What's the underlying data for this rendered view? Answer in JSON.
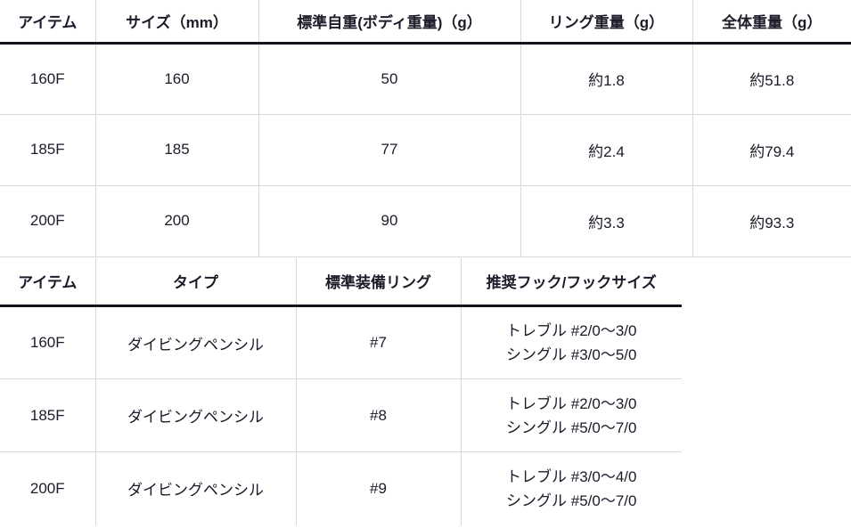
{
  "colors": {
    "background": "#ffffff",
    "text": "#1b1b29",
    "grid_line": "#d9d9d9",
    "header_rule": "#14141c"
  },
  "spec_table": {
    "headers": [
      "アイテム",
      "サイズ（mm）",
      "標準自重(ボディ重量)（g）",
      "リング重量（g）",
      "全体重量（g）"
    ],
    "rows": [
      [
        "160F",
        "160",
        "50",
        "約1.8",
        "約51.8"
      ],
      [
        "185F",
        "185",
        "77",
        "約2.4",
        "約79.4"
      ],
      [
        "200F",
        "200",
        "90",
        "約3.3",
        "約93.3"
      ]
    ]
  },
  "hook_table": {
    "headers": [
      "アイテム",
      "タイプ",
      "標準装備リング",
      "推奨フック/フックサイズ"
    ],
    "rows": [
      [
        "160F",
        "ダイビングペンシル",
        "#7",
        [
          "トレブル #2/0〜3/0",
          "シングル #3/0〜5/0"
        ]
      ],
      [
        "185F",
        "ダイビングペンシル",
        "#8",
        [
          "トレブル #2/0〜3/0",
          "シングル #5/0〜7/0"
        ]
      ],
      [
        "200F",
        "ダイビングペンシル",
        "#9",
        [
          "トレブル #3/0〜4/0",
          "シングル #5/0〜7/0"
        ]
      ]
    ]
  }
}
